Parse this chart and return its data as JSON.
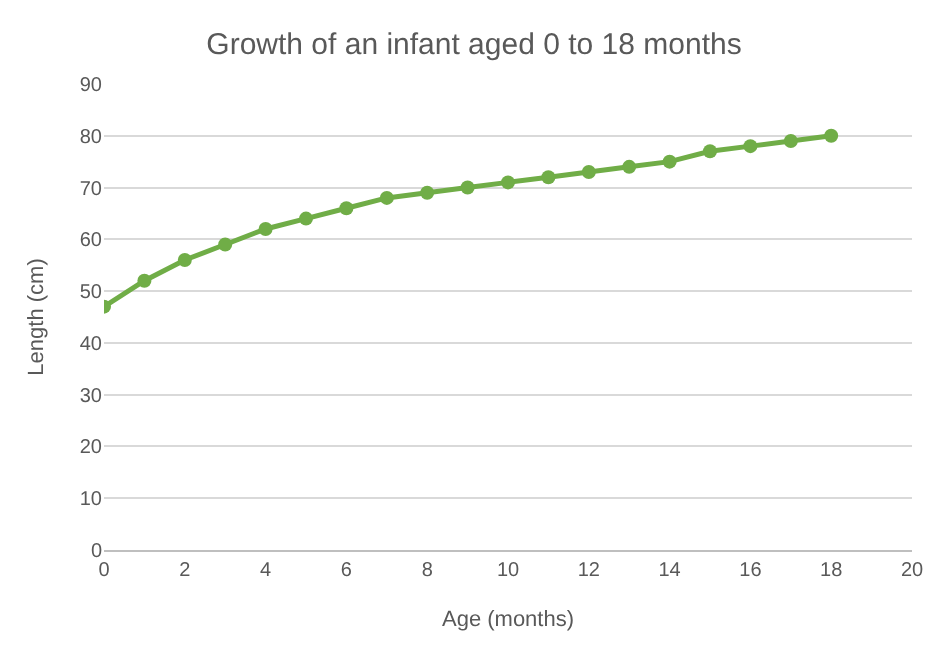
{
  "chart_data": {
    "type": "line",
    "title": "Growth of an infant aged 0 to 18 months",
    "xlabel": "Age (months)",
    "ylabel": "Length (cm)",
    "x": [
      0,
      1,
      2,
      3,
      4,
      5,
      6,
      7,
      8,
      9,
      10,
      11,
      12,
      13,
      14,
      15,
      16,
      17,
      18
    ],
    "series": [
      {
        "color": "#70ad47",
        "values": [
          47,
          52,
          56,
          59,
          62,
          64,
          66,
          68,
          69,
          70,
          71,
          72,
          73,
          74,
          75,
          77,
          78,
          79,
          80
        ]
      }
    ],
    "xlim": [
      0,
      20
    ],
    "xticks": [
      0,
      2,
      4,
      6,
      8,
      10,
      12,
      14,
      16,
      18,
      20
    ],
    "ylim": [
      0,
      90
    ],
    "yticks": [
      0,
      10,
      20,
      30,
      40,
      50,
      60,
      70,
      80,
      90
    ],
    "grid": "y",
    "marker": "circle",
    "line_style": "solid"
  }
}
